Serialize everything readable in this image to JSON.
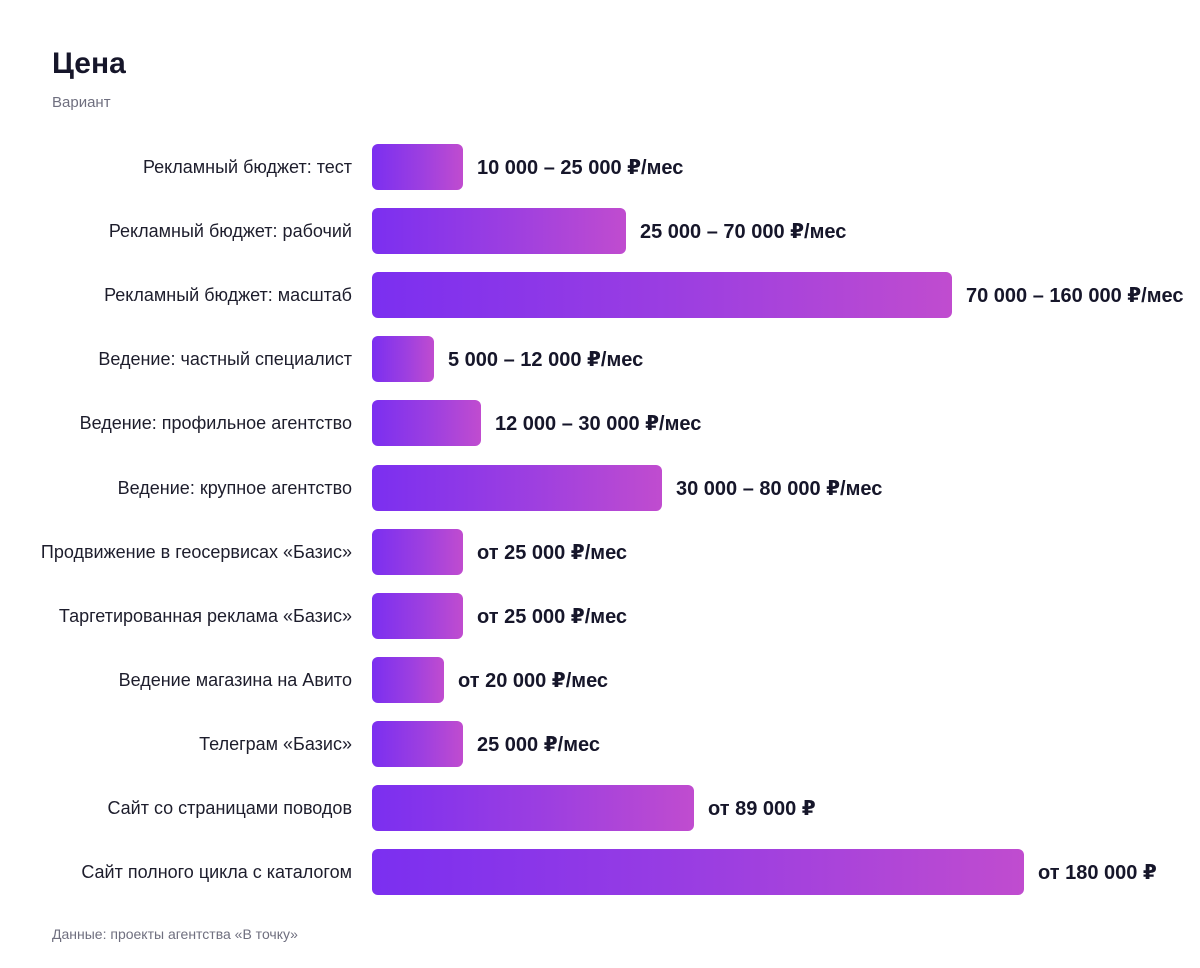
{
  "header": {
    "title": "Цена",
    "subtitle": "Вариант"
  },
  "footer": {
    "source": "Данные: проекты агентства «В точку»"
  },
  "colors": {
    "bar_gradient_start": "#7b2ff0",
    "bar_gradient_mid": "#9d3fe0",
    "bar_gradient_end": "#c04ccf",
    "text_primary": "#16162a",
    "text_muted": "#6f6f7f"
  },
  "chart_data": {
    "type": "bar",
    "orientation": "horizontal",
    "title": "Цена",
    "subtitle": "Вариант",
    "xlabel": "",
    "ylabel": "",
    "xlim": [
      0,
      180000
    ],
    "grid": false,
    "legend": "none",
    "categories": [
      "Рекламный бюджет: тест",
      "Рекламный бюджет: рабочий",
      "Рекламный бюджет: масштаб",
      "Ведение: частный специалист",
      "Ведение: профильное агентство",
      "Ведение: крупное агентство",
      "Продвижение в геосервисах «Базис»",
      "Таргетированная реклама «Базис»",
      "Ведение магазина на Авито",
      "Телеграм «Базис»",
      "Сайт со страницами поводов",
      "Сайт полного цикла с каталогом"
    ],
    "values": [
      25000,
      70000,
      160000,
      12000,
      30000,
      80000,
      25000,
      25000,
      20000,
      25000,
      89000,
      180000
    ],
    "value_labels": [
      "10 000 – 25 000 ₽/мес",
      "25 000 – 70 000 ₽/мес",
      "70 000 – 160 000 ₽/мес",
      "5 000 – 12 000 ₽/мес",
      "12 000 – 30 000 ₽/мес",
      "30 000 – 80 000 ₽/мес",
      "от 25 000 ₽/мес",
      "от 25 000 ₽/мес",
      "от 20 000 ₽/мес",
      "25 000 ₽/мес",
      "от 89 000 ₽",
      "от 180 000 ₽"
    ]
  }
}
